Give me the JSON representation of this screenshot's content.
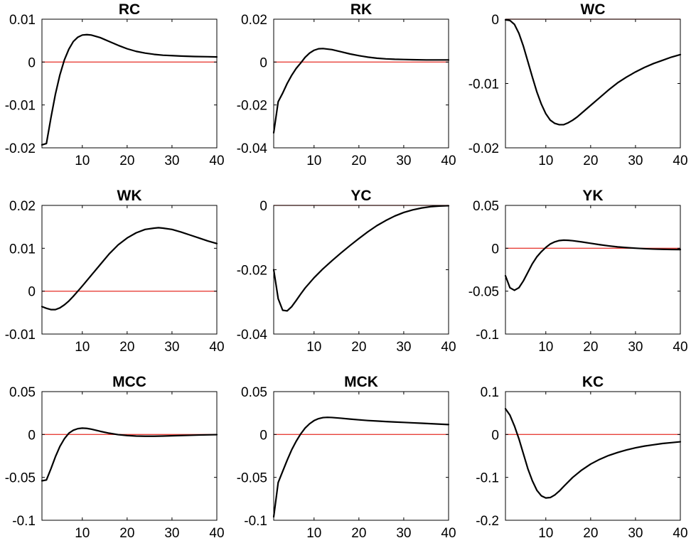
{
  "chart_data": [
    {
      "type": "line",
      "title": "RC",
      "xlim": [
        1,
        40
      ],
      "ylim": [
        -0.02,
        0.01
      ],
      "xticks": [
        10,
        20,
        30,
        40
      ],
      "xtick_labels": [
        "10",
        "20",
        "30",
        "40"
      ],
      "yticks": [
        -0.02,
        -0.01,
        0,
        0.01
      ],
      "ytick_labels": [
        "-0.02",
        "-0.01",
        "0",
        "0.01"
      ],
      "series": [
        {
          "name": "RC",
          "x": [
            1,
            2,
            3,
            4,
            5,
            6,
            7,
            8,
            9,
            10,
            11,
            12,
            14,
            16,
            18,
            20,
            22,
            24,
            26,
            28,
            30,
            32,
            35,
            38,
            40
          ],
          "y": [
            -0.0193,
            -0.019,
            -0.013,
            -0.0075,
            -0.003,
            0.0005,
            0.003,
            0.0048,
            0.0058,
            0.0063,
            0.0064,
            0.0063,
            0.0057,
            0.0048,
            0.0039,
            0.0031,
            0.0025,
            0.0021,
            0.0018,
            0.0016,
            0.0015,
            0.0014,
            0.0013,
            0.00125,
            0.0012
          ]
        }
      ],
      "reference_line": 0
    },
    {
      "type": "line",
      "title": "RK",
      "xlim": [
        1,
        40
      ],
      "ylim": [
        -0.04,
        0.02
      ],
      "xticks": [
        10,
        20,
        30,
        40
      ],
      "xtick_labels": [
        "10",
        "20",
        "30",
        "40"
      ],
      "yticks": [
        -0.04,
        -0.02,
        0,
        0.02
      ],
      "ytick_labels": [
        "-0.04",
        "-0.02",
        "0",
        "0.02"
      ],
      "series": [
        {
          "name": "RK",
          "x": [
            1,
            2,
            3,
            4,
            5,
            6,
            7,
            8,
            9,
            10,
            11,
            12,
            14,
            16,
            18,
            20,
            22,
            24,
            26,
            28,
            30,
            32,
            35,
            38,
            40
          ],
          "y": [
            -0.033,
            -0.0185,
            -0.0145,
            -0.01,
            -0.0062,
            -0.003,
            -0.0005,
            0.0022,
            0.0042,
            0.0055,
            0.0062,
            0.0063,
            0.0058,
            0.0048,
            0.0038,
            0.003,
            0.0023,
            0.0018,
            0.0015,
            0.0013,
            0.0012,
            0.0011,
            0.001,
            0.001,
            0.001
          ]
        }
      ],
      "reference_line": 0
    },
    {
      "type": "line",
      "title": "WC",
      "xlim": [
        1,
        40
      ],
      "ylim": [
        -0.02,
        0
      ],
      "xticks": [
        10,
        20,
        30,
        40
      ],
      "xtick_labels": [
        "10",
        "20",
        "30",
        "40"
      ],
      "yticks": [
        -0.02,
        -0.01,
        0
      ],
      "ytick_labels": [
        "-0.02",
        "-0.01",
        "0"
      ],
      "series": [
        {
          "name": "WC",
          "x": [
            1,
            2,
            3,
            4,
            5,
            6,
            7,
            8,
            9,
            10,
            11,
            12,
            13,
            14,
            15,
            16,
            17,
            18,
            20,
            22,
            24,
            26,
            28,
            30,
            32,
            34,
            36,
            38,
            40
          ],
          "y": [
            -0.0001,
            -0.0002,
            -0.0008,
            -0.0022,
            -0.0042,
            -0.0066,
            -0.009,
            -0.0113,
            -0.0132,
            -0.0147,
            -0.0157,
            -0.0162,
            -0.0164,
            -0.0164,
            -0.0161,
            -0.0157,
            -0.0152,
            -0.0146,
            -0.0134,
            -0.0122,
            -0.011,
            -0.0099,
            -0.009,
            -0.0082,
            -0.0075,
            -0.0069,
            -0.0064,
            -0.0059,
            -0.0055
          ]
        }
      ],
      "reference_line": 0
    },
    {
      "type": "line",
      "title": "WK",
      "xlim": [
        1,
        40
      ],
      "ylim": [
        -0.01,
        0.02
      ],
      "xticks": [
        10,
        20,
        30,
        40
      ],
      "xtick_labels": [
        "10",
        "20",
        "30",
        "40"
      ],
      "yticks": [
        -0.01,
        0,
        0.01,
        0.02
      ],
      "ytick_labels": [
        "-0.01",
        "0",
        "0.01",
        "0.02"
      ],
      "series": [
        {
          "name": "WK",
          "x": [
            1,
            2,
            3,
            4,
            5,
            6,
            7,
            8,
            9,
            10,
            12,
            14,
            16,
            18,
            20,
            22,
            24,
            26,
            27,
            28,
            30,
            32,
            34,
            36,
            38,
            40
          ],
          "y": [
            -0.0036,
            -0.004,
            -0.0043,
            -0.0043,
            -0.0039,
            -0.0032,
            -0.0023,
            -0.0012,
            0.0,
            0.0012,
            0.0037,
            0.0062,
            0.0087,
            0.0108,
            0.0124,
            0.0136,
            0.0144,
            0.0147,
            0.0148,
            0.0147,
            0.0144,
            0.0138,
            0.0131,
            0.0124,
            0.0117,
            0.0111
          ]
        }
      ],
      "reference_line": 0
    },
    {
      "type": "line",
      "title": "YC",
      "xlim": [
        1,
        40
      ],
      "ylim": [
        -0.04,
        0
      ],
      "xticks": [
        10,
        20,
        30,
        40
      ],
      "xtick_labels": [
        "10",
        "20",
        "30",
        "40"
      ],
      "yticks": [
        -0.04,
        -0.02,
        0
      ],
      "ytick_labels": [
        "-0.04",
        "-0.02",
        "0"
      ],
      "series": [
        {
          "name": "YC",
          "x": [
            1,
            2,
            3,
            4,
            5,
            6,
            7,
            8,
            10,
            12,
            14,
            16,
            18,
            20,
            22,
            24,
            26,
            28,
            30,
            32,
            34,
            36,
            38,
            40
          ],
          "y": [
            -0.02,
            -0.029,
            -0.0326,
            -0.0328,
            -0.0315,
            -0.0296,
            -0.0276,
            -0.0257,
            -0.0225,
            -0.0197,
            -0.0172,
            -0.0148,
            -0.0125,
            -0.0103,
            -0.0082,
            -0.0063,
            -0.0047,
            -0.0033,
            -0.0022,
            -0.0014,
            -0.0008,
            -0.0004,
            -0.0002,
            -0.0001
          ]
        }
      ],
      "reference_line": 0
    },
    {
      "type": "line",
      "title": "YK",
      "xlim": [
        1,
        40
      ],
      "ylim": [
        -0.1,
        0.05
      ],
      "xticks": [
        10,
        20,
        30,
        40
      ],
      "xtick_labels": [
        "10",
        "20",
        "30",
        "40"
      ],
      "yticks": [
        -0.1,
        -0.05,
        0,
        0.05
      ],
      "ytick_labels": [
        "-0.1",
        "-0.05",
        "0",
        "0.05"
      ],
      "series": [
        {
          "name": "YK",
          "x": [
            1,
            2,
            3,
            4,
            5,
            6,
            7,
            8,
            9,
            10,
            11,
            12,
            13,
            14,
            15,
            16,
            18,
            20,
            22,
            24,
            26,
            28,
            30,
            32,
            34,
            36,
            38,
            40
          ],
          "y": [
            -0.032,
            -0.046,
            -0.049,
            -0.046,
            -0.038,
            -0.028,
            -0.018,
            -0.01,
            -0.004,
            0.001,
            0.005,
            0.0075,
            0.009,
            0.0095,
            0.0093,
            0.0088,
            0.0074,
            0.0058,
            0.0042,
            0.0028,
            0.0016,
            0.0008,
            0.0001,
            -0.0005,
            -0.0009,
            -0.0012,
            -0.0014,
            -0.0015
          ]
        }
      ],
      "reference_line": 0
    },
    {
      "type": "line",
      "title": "MCC",
      "xlim": [
        1,
        40
      ],
      "ylim": [
        -0.1,
        0.05
      ],
      "xticks": [
        10,
        20,
        30,
        40
      ],
      "xtick_labels": [
        "10",
        "20",
        "30",
        "40"
      ],
      "yticks": [
        -0.1,
        -0.05,
        0,
        0.05
      ],
      "ytick_labels": [
        "-0.1",
        "-0.05",
        "0",
        "0.05"
      ],
      "series": [
        {
          "name": "MCC",
          "x": [
            1,
            2,
            3,
            4,
            5,
            6,
            7,
            8,
            9,
            10,
            11,
            12,
            13,
            14,
            16,
            18,
            20,
            22,
            24,
            26,
            28,
            30,
            32,
            34,
            36,
            38,
            40
          ],
          "y": [
            -0.054,
            -0.053,
            -0.04,
            -0.026,
            -0.014,
            -0.005,
            0.0015,
            0.005,
            0.0068,
            0.0074,
            0.0071,
            0.0062,
            0.005,
            0.0037,
            0.0015,
            -0.0002,
            -0.0012,
            -0.0018,
            -0.002,
            -0.002,
            -0.0018,
            -0.0015,
            -0.0012,
            -0.0009,
            -0.0006,
            -0.0004,
            -0.0002
          ]
        }
      ],
      "reference_line": 0
    },
    {
      "type": "line",
      "title": "MCK",
      "xlim": [
        1,
        40
      ],
      "ylim": [
        -0.1,
        0.05
      ],
      "xticks": [
        10,
        20,
        30,
        40
      ],
      "xtick_labels": [
        "10",
        "20",
        "30",
        "40"
      ],
      "yticks": [
        -0.1,
        -0.05,
        0,
        0.05
      ],
      "ytick_labels": [
        "-0.1",
        "-0.05",
        "0",
        "0.05"
      ],
      "series": [
        {
          "name": "MCK",
          "x": [
            1,
            2,
            3,
            4,
            5,
            6,
            7,
            8,
            9,
            10,
            11,
            12,
            13,
            14,
            16,
            18,
            20,
            22,
            24,
            26,
            28,
            30,
            32,
            34,
            36,
            38,
            40
          ],
          "y": [
            -0.096,
            -0.056,
            -0.043,
            -0.03,
            -0.018,
            -0.008,
            0.0005,
            0.0075,
            0.0125,
            0.0162,
            0.0185,
            0.0197,
            0.02,
            0.0198,
            0.019,
            0.018,
            0.0171,
            0.0163,
            0.0157,
            0.0151,
            0.0146,
            0.0141,
            0.0136,
            0.0131,
            0.0126,
            0.0121,
            0.0116
          ]
        }
      ],
      "reference_line": 0
    },
    {
      "type": "line",
      "title": "KC",
      "xlim": [
        1,
        40
      ],
      "ylim": [
        -0.2,
        0.1
      ],
      "xticks": [
        10,
        20,
        30,
        40
      ],
      "xtick_labels": [
        "10",
        "20",
        "30",
        "40"
      ],
      "yticks": [
        -0.2,
        -0.1,
        0,
        0.1
      ],
      "ytick_labels": [
        "-0.2",
        "-0.1",
        "0",
        "0.1"
      ],
      "series": [
        {
          "name": "KC",
          "x": [
            1,
            2,
            3,
            4,
            5,
            6,
            7,
            8,
            9,
            10,
            11,
            12,
            13,
            14,
            16,
            18,
            20,
            22,
            24,
            26,
            28,
            30,
            32,
            34,
            36,
            38,
            40
          ],
          "y": [
            0.06,
            0.045,
            0.02,
            -0.01,
            -0.045,
            -0.08,
            -0.108,
            -0.13,
            -0.143,
            -0.148,
            -0.147,
            -0.141,
            -0.132,
            -0.121,
            -0.1,
            -0.083,
            -0.069,
            -0.058,
            -0.049,
            -0.042,
            -0.036,
            -0.031,
            -0.027,
            -0.024,
            -0.021,
            -0.019,
            -0.017
          ]
        }
      ],
      "reference_line": 0
    }
  ]
}
